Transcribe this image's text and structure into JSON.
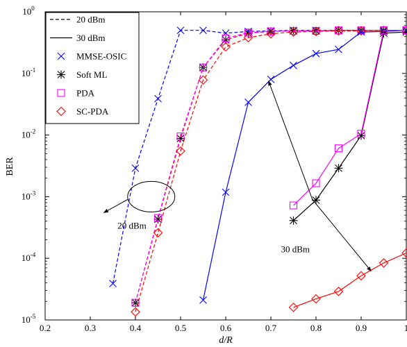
{
  "chart_data": {
    "type": "line",
    "title": "",
    "xlabel": "d/R",
    "ylabel": "BER",
    "xlim": [
      0.2,
      1.0
    ],
    "ylim_log10": [
      -5,
      0
    ],
    "yscale": "log",
    "grid": false,
    "x_ticks": [
      {
        "value": 0.2,
        "label": "0.2"
      },
      {
        "value": 0.3,
        "label": "0.3"
      },
      {
        "value": 0.4,
        "label": "0.4"
      },
      {
        "value": 0.5,
        "label": "0.5"
      },
      {
        "value": 0.6,
        "label": "0.6"
      },
      {
        "value": 0.7,
        "label": "0.7"
      },
      {
        "value": 0.8,
        "label": "0.8"
      },
      {
        "value": 0.9,
        "label": "0.9"
      },
      {
        "value": 1.0,
        "label": "1"
      }
    ],
    "y_ticks": [
      {
        "exp": -5,
        "base": "10",
        "sup": "-5"
      },
      {
        "exp": -4,
        "base": "10",
        "sup": "-4"
      },
      {
        "exp": -3,
        "base": "10",
        "sup": "-3"
      },
      {
        "exp": -2,
        "base": "10",
        "sup": "-2"
      },
      {
        "exp": -1,
        "base": "10",
        "sup": "-1"
      },
      {
        "exp": 0,
        "base": "10",
        "sup": "0"
      }
    ],
    "legend": {
      "placement": "top-left",
      "entries": [
        {
          "label": "20 dBm",
          "kind": "line",
          "dash": "dashed",
          "color": "#000000"
        },
        {
          "label": "30 dBm",
          "kind": "line",
          "dash": "solid",
          "color": "#000000"
        },
        {
          "label": "MMSE-OSIC",
          "kind": "marker",
          "marker": "x",
          "color": "#0000ff"
        },
        {
          "label": "Soft ML",
          "kind": "marker",
          "marker": "star",
          "color": "#000000"
        },
        {
          "label": "PDA",
          "kind": "marker",
          "marker": "square",
          "color": "#ff00ff"
        },
        {
          "label": "SC-PDA",
          "kind": "marker",
          "marker": "diamond",
          "color": "#ff0000"
        }
      ]
    },
    "series": [
      {
        "algo": "MMSE-OSIC",
        "power": "20 dBm",
        "color": "#0000ff",
        "dash": "dashed",
        "marker": "x",
        "x": [
          0.35,
          0.4,
          0.45,
          0.5,
          0.55,
          0.6,
          0.65,
          0.7,
          0.75,
          0.8,
          0.85,
          0.9,
          0.95,
          1.0
        ],
        "y": [
          3.9e-05,
          0.0029,
          0.039,
          0.5,
          0.5,
          0.45,
          0.48,
          0.49,
          0.5,
          0.5,
          0.5,
          0.5,
          0.5,
          0.5
        ]
      },
      {
        "algo": "Soft ML",
        "power": "20 dBm",
        "color": "#ff0000",
        "dash": "dashed",
        "marker": "star",
        "x": [
          0.4,
          0.45,
          0.5,
          0.55,
          0.6,
          0.65,
          0.7,
          0.75,
          0.8,
          0.85,
          0.9,
          0.95,
          1.0
        ],
        "y": [
          1.9e-05,
          0.00043,
          0.0088,
          0.125,
          0.35,
          0.45,
          0.48,
          0.49,
          0.49,
          0.5,
          0.5,
          0.5,
          0.5
        ]
      },
      {
        "algo": "PDA",
        "power": "20 dBm",
        "color": "#ff00ff",
        "dash": "dashed",
        "marker": "square",
        "x": [
          0.4,
          0.45,
          0.5,
          0.55,
          0.6,
          0.65,
          0.7,
          0.75,
          0.8,
          0.85,
          0.9,
          0.95,
          1.0
        ],
        "y": [
          1.9e-05,
          0.00045,
          0.0095,
          0.125,
          0.37,
          0.46,
          0.48,
          0.49,
          0.49,
          0.5,
          0.5,
          0.5,
          0.5
        ]
      },
      {
        "algo": "SC-PDA",
        "power": "20 dBm",
        "color": "#ff0000",
        "dash": "dashed",
        "marker": "diamond",
        "x": [
          0.4,
          0.45,
          0.5,
          0.55,
          0.6,
          0.65,
          0.7,
          0.75,
          0.8,
          0.85,
          0.9,
          0.95,
          1.0
        ],
        "y": [
          1.35e-05,
          0.00026,
          0.0055,
          0.078,
          0.27,
          0.38,
          0.44,
          0.47,
          0.48,
          0.49,
          0.49,
          0.5,
          0.5
        ]
      },
      {
        "algo": "MMSE-OSIC",
        "power": "30 dBm",
        "color": "#0000ff",
        "dash": "solid",
        "marker": "x",
        "x": [
          0.55,
          0.6,
          0.65,
          0.7,
          0.75,
          0.8,
          0.85,
          0.9,
          0.95,
          1.0
        ],
        "y": [
          2.1e-05,
          0.00118,
          0.034,
          0.08,
          0.135,
          0.21,
          0.245,
          0.47,
          0.48,
          0.5
        ]
      },
      {
        "algo": "Soft ML",
        "power": "30 dBm",
        "color": "#000000",
        "dash": "solid",
        "marker": "star",
        "x": [
          0.75,
          0.8,
          0.85,
          0.9,
          0.95,
          1.0
        ],
        "y": [
          0.00041,
          0.00088,
          0.0029,
          0.0098,
          0.45,
          0.47
        ]
      },
      {
        "algo": "PDA",
        "power": "30 dBm",
        "color": "#ff00ff",
        "dash": "solid",
        "marker": "square",
        "x": [
          0.75,
          0.8,
          0.85,
          0.9,
          0.95,
          1.0
        ],
        "y": [
          0.00072,
          0.00165,
          0.0061,
          0.0105,
          0.5,
          0.5
        ]
      },
      {
        "algo": "SC-PDA",
        "power": "30 dBm",
        "color": "#ff0000",
        "dash": "solid",
        "marker": "diamond",
        "x": [
          0.75,
          0.8,
          0.85,
          0.9,
          0.95,
          1.0
        ],
        "y": [
          1.6e-05,
          2.2e-05,
          2.9e-05,
          5.2e-05,
          8.4e-05,
          0.000122
        ]
      }
    ],
    "annotations": [
      {
        "text": "20 dBm",
        "ellipse_center": {
          "x": 0.435,
          "y": 0.001
        },
        "arrow_to": {
          "x": 0.33,
          "y": 0.00055
        },
        "label_at": {
          "x": 0.34,
          "y": 0.00032
        }
      },
      {
        "text": "30 dBm",
        "label_at": {
          "x": 0.785,
          "y": 0.00021
        },
        "arrows_from": {
          "x": 0.792,
          "y": 0.0009
        },
        "arrows_to": [
          {
            "x": 0.695,
            "y": 0.075
          },
          {
            "x": 0.922,
            "y": 6.2e-05
          }
        ]
      }
    ]
  }
}
